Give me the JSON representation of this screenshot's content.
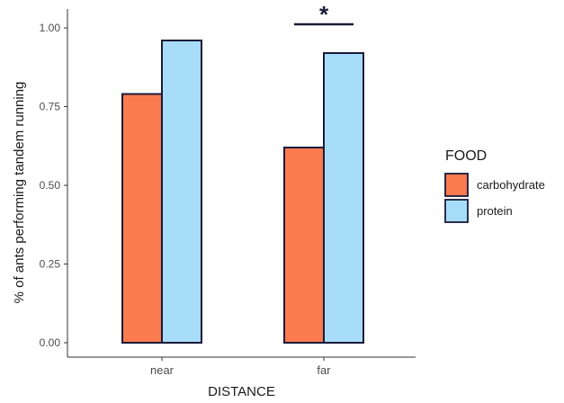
{
  "chart_data": {
    "type": "bar",
    "categories": [
      "near",
      "far"
    ],
    "series": [
      {
        "name": "carbohydrate",
        "values": [
          0.79,
          0.62
        ],
        "color": "#F97B4F"
      },
      {
        "name": "protein",
        "values": [
          0.96,
          0.92
        ],
        "color": "#A8DDFA"
      }
    ],
    "xlabel": "DISTANCE",
    "ylabel": "% of ants performing tandem running",
    "ylim": [
      0,
      1.0
    ],
    "yticks": [
      0,
      0.25,
      0.5,
      0.75,
      1.0
    ],
    "ytick_labels": [
      "0.00",
      "0.25",
      "0.50",
      "0.75",
      "1.00"
    ],
    "grid": false,
    "legend": {
      "title": "FOOD",
      "placement": "right"
    },
    "annotations": [
      {
        "text": "*",
        "category": "far",
        "type": "significance"
      }
    ],
    "bar_outline_color": "#1A1A3A"
  }
}
